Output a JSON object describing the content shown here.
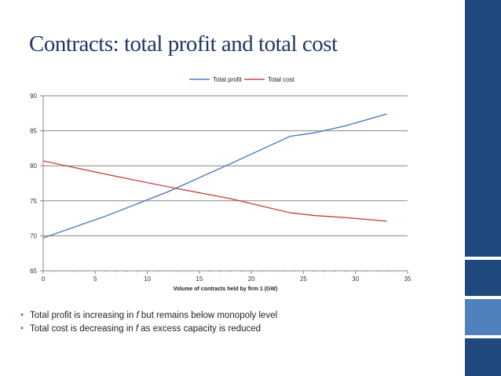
{
  "slide": {
    "title": "Contracts: total profit and total cost",
    "bullets": [
      {
        "pre": "Total profit is increasing in ",
        "var": "f",
        "post": " but remains below monopoly level"
      },
      {
        "pre": "Total cost is decreasing in ",
        "var": "f",
        "post": " as excess capacity is reduced"
      }
    ]
  },
  "theme": {
    "title_color": "#1f3864",
    "sidebar_dark": "#1f497d",
    "sidebar_light": "#4f81bd"
  },
  "chart_data": {
    "type": "line",
    "title": "",
    "xlabel": "Volume of contracts held by firm 1 (GW)",
    "ylabel": "",
    "xlim": [
      0,
      35
    ],
    "ylim": [
      65,
      90
    ],
    "xticks": [
      0,
      5,
      10,
      15,
      20,
      25,
      30,
      35
    ],
    "yticks": [
      65,
      70,
      75,
      80,
      85,
      90
    ],
    "grid": "horizontal",
    "legend_position": "top-center",
    "series": [
      {
        "name": "Total profit",
        "color": "#4a7ebb",
        "x": [
          0,
          6,
          12,
          18,
          23.7,
          26,
          29,
          33
        ],
        "y": [
          69.7,
          72.8,
          76.3,
          80.3,
          84.2,
          84.7,
          85.7,
          87.4
        ]
      },
      {
        "name": "Total cost",
        "color": "#be4b48",
        "x": [
          0,
          6,
          12,
          18,
          23.7,
          26,
          29,
          33
        ],
        "y": [
          80.7,
          78.8,
          77.0,
          75.3,
          73.3,
          72.9,
          72.6,
          72.1
        ]
      }
    ]
  }
}
